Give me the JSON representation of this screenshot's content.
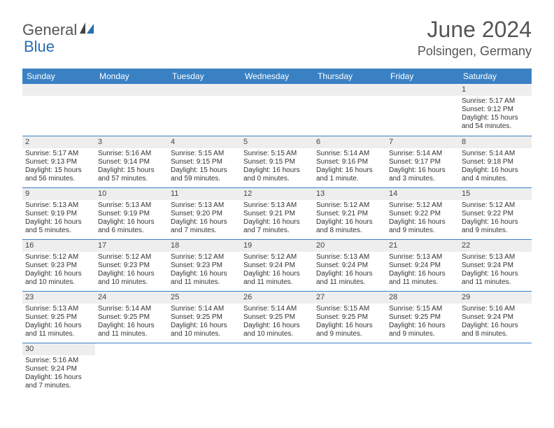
{
  "logo": {
    "part1": "General",
    "part2": "Blue"
  },
  "title": "June 2024",
  "location": "Polsingen, Germany",
  "colors": {
    "header_bg": "#3a81c4",
    "header_text": "#ffffff",
    "border": "#3a81c4",
    "daynum_bg": "#eeeeee",
    "title_color": "#555555",
    "logo_blue": "#2a6db0",
    "logo_gray": "#555555"
  },
  "weekdays": [
    "Sunday",
    "Monday",
    "Tuesday",
    "Wednesday",
    "Thursday",
    "Friday",
    "Saturday"
  ],
  "weeks": [
    [
      {
        "n": "",
        "sr": "",
        "ss": "",
        "dl1": "",
        "dl2": ""
      },
      {
        "n": "",
        "sr": "",
        "ss": "",
        "dl1": "",
        "dl2": ""
      },
      {
        "n": "",
        "sr": "",
        "ss": "",
        "dl1": "",
        "dl2": ""
      },
      {
        "n": "",
        "sr": "",
        "ss": "",
        "dl1": "",
        "dl2": ""
      },
      {
        "n": "",
        "sr": "",
        "ss": "",
        "dl1": "",
        "dl2": ""
      },
      {
        "n": "",
        "sr": "",
        "ss": "",
        "dl1": "",
        "dl2": ""
      },
      {
        "n": "1",
        "sr": "Sunrise: 5:17 AM",
        "ss": "Sunset: 9:12 PM",
        "dl1": "Daylight: 15 hours",
        "dl2": "and 54 minutes."
      }
    ],
    [
      {
        "n": "2",
        "sr": "Sunrise: 5:17 AM",
        "ss": "Sunset: 9:13 PM",
        "dl1": "Daylight: 15 hours",
        "dl2": "and 56 minutes."
      },
      {
        "n": "3",
        "sr": "Sunrise: 5:16 AM",
        "ss": "Sunset: 9:14 PM",
        "dl1": "Daylight: 15 hours",
        "dl2": "and 57 minutes."
      },
      {
        "n": "4",
        "sr": "Sunrise: 5:15 AM",
        "ss": "Sunset: 9:15 PM",
        "dl1": "Daylight: 15 hours",
        "dl2": "and 59 minutes."
      },
      {
        "n": "5",
        "sr": "Sunrise: 5:15 AM",
        "ss": "Sunset: 9:15 PM",
        "dl1": "Daylight: 16 hours",
        "dl2": "and 0 minutes."
      },
      {
        "n": "6",
        "sr": "Sunrise: 5:14 AM",
        "ss": "Sunset: 9:16 PM",
        "dl1": "Daylight: 16 hours",
        "dl2": "and 1 minute."
      },
      {
        "n": "7",
        "sr": "Sunrise: 5:14 AM",
        "ss": "Sunset: 9:17 PM",
        "dl1": "Daylight: 16 hours",
        "dl2": "and 3 minutes."
      },
      {
        "n": "8",
        "sr": "Sunrise: 5:14 AM",
        "ss": "Sunset: 9:18 PM",
        "dl1": "Daylight: 16 hours",
        "dl2": "and 4 minutes."
      }
    ],
    [
      {
        "n": "9",
        "sr": "Sunrise: 5:13 AM",
        "ss": "Sunset: 9:19 PM",
        "dl1": "Daylight: 16 hours",
        "dl2": "and 5 minutes."
      },
      {
        "n": "10",
        "sr": "Sunrise: 5:13 AM",
        "ss": "Sunset: 9:19 PM",
        "dl1": "Daylight: 16 hours",
        "dl2": "and 6 minutes."
      },
      {
        "n": "11",
        "sr": "Sunrise: 5:13 AM",
        "ss": "Sunset: 9:20 PM",
        "dl1": "Daylight: 16 hours",
        "dl2": "and 7 minutes."
      },
      {
        "n": "12",
        "sr": "Sunrise: 5:13 AM",
        "ss": "Sunset: 9:21 PM",
        "dl1": "Daylight: 16 hours",
        "dl2": "and 7 minutes."
      },
      {
        "n": "13",
        "sr": "Sunrise: 5:12 AM",
        "ss": "Sunset: 9:21 PM",
        "dl1": "Daylight: 16 hours",
        "dl2": "and 8 minutes."
      },
      {
        "n": "14",
        "sr": "Sunrise: 5:12 AM",
        "ss": "Sunset: 9:22 PM",
        "dl1": "Daylight: 16 hours",
        "dl2": "and 9 minutes."
      },
      {
        "n": "15",
        "sr": "Sunrise: 5:12 AM",
        "ss": "Sunset: 9:22 PM",
        "dl1": "Daylight: 16 hours",
        "dl2": "and 9 minutes."
      }
    ],
    [
      {
        "n": "16",
        "sr": "Sunrise: 5:12 AM",
        "ss": "Sunset: 9:23 PM",
        "dl1": "Daylight: 16 hours",
        "dl2": "and 10 minutes."
      },
      {
        "n": "17",
        "sr": "Sunrise: 5:12 AM",
        "ss": "Sunset: 9:23 PM",
        "dl1": "Daylight: 16 hours",
        "dl2": "and 10 minutes."
      },
      {
        "n": "18",
        "sr": "Sunrise: 5:12 AM",
        "ss": "Sunset: 9:23 PM",
        "dl1": "Daylight: 16 hours",
        "dl2": "and 11 minutes."
      },
      {
        "n": "19",
        "sr": "Sunrise: 5:12 AM",
        "ss": "Sunset: 9:24 PM",
        "dl1": "Daylight: 16 hours",
        "dl2": "and 11 minutes."
      },
      {
        "n": "20",
        "sr": "Sunrise: 5:13 AM",
        "ss": "Sunset: 9:24 PM",
        "dl1": "Daylight: 16 hours",
        "dl2": "and 11 minutes."
      },
      {
        "n": "21",
        "sr": "Sunrise: 5:13 AM",
        "ss": "Sunset: 9:24 PM",
        "dl1": "Daylight: 16 hours",
        "dl2": "and 11 minutes."
      },
      {
        "n": "22",
        "sr": "Sunrise: 5:13 AM",
        "ss": "Sunset: 9:24 PM",
        "dl1": "Daylight: 16 hours",
        "dl2": "and 11 minutes."
      }
    ],
    [
      {
        "n": "23",
        "sr": "Sunrise: 5:13 AM",
        "ss": "Sunset: 9:25 PM",
        "dl1": "Daylight: 16 hours",
        "dl2": "and 11 minutes."
      },
      {
        "n": "24",
        "sr": "Sunrise: 5:14 AM",
        "ss": "Sunset: 9:25 PM",
        "dl1": "Daylight: 16 hours",
        "dl2": "and 11 minutes."
      },
      {
        "n": "25",
        "sr": "Sunrise: 5:14 AM",
        "ss": "Sunset: 9:25 PM",
        "dl1": "Daylight: 16 hours",
        "dl2": "and 10 minutes."
      },
      {
        "n": "26",
        "sr": "Sunrise: 5:14 AM",
        "ss": "Sunset: 9:25 PM",
        "dl1": "Daylight: 16 hours",
        "dl2": "and 10 minutes."
      },
      {
        "n": "27",
        "sr": "Sunrise: 5:15 AM",
        "ss": "Sunset: 9:25 PM",
        "dl1": "Daylight: 16 hours",
        "dl2": "and 9 minutes."
      },
      {
        "n": "28",
        "sr": "Sunrise: 5:15 AM",
        "ss": "Sunset: 9:25 PM",
        "dl1": "Daylight: 16 hours",
        "dl2": "and 9 minutes."
      },
      {
        "n": "29",
        "sr": "Sunrise: 5:16 AM",
        "ss": "Sunset: 9:24 PM",
        "dl1": "Daylight: 16 hours",
        "dl2": "and 8 minutes."
      }
    ],
    [
      {
        "n": "30",
        "sr": "Sunrise: 5:16 AM",
        "ss": "Sunset: 9:24 PM",
        "dl1": "Daylight: 16 hours",
        "dl2": "and 7 minutes."
      },
      {
        "n": "",
        "sr": "",
        "ss": "",
        "dl1": "",
        "dl2": ""
      },
      {
        "n": "",
        "sr": "",
        "ss": "",
        "dl1": "",
        "dl2": ""
      },
      {
        "n": "",
        "sr": "",
        "ss": "",
        "dl1": "",
        "dl2": ""
      },
      {
        "n": "",
        "sr": "",
        "ss": "",
        "dl1": "",
        "dl2": ""
      },
      {
        "n": "",
        "sr": "",
        "ss": "",
        "dl1": "",
        "dl2": ""
      },
      {
        "n": "",
        "sr": "",
        "ss": "",
        "dl1": "",
        "dl2": ""
      }
    ]
  ]
}
